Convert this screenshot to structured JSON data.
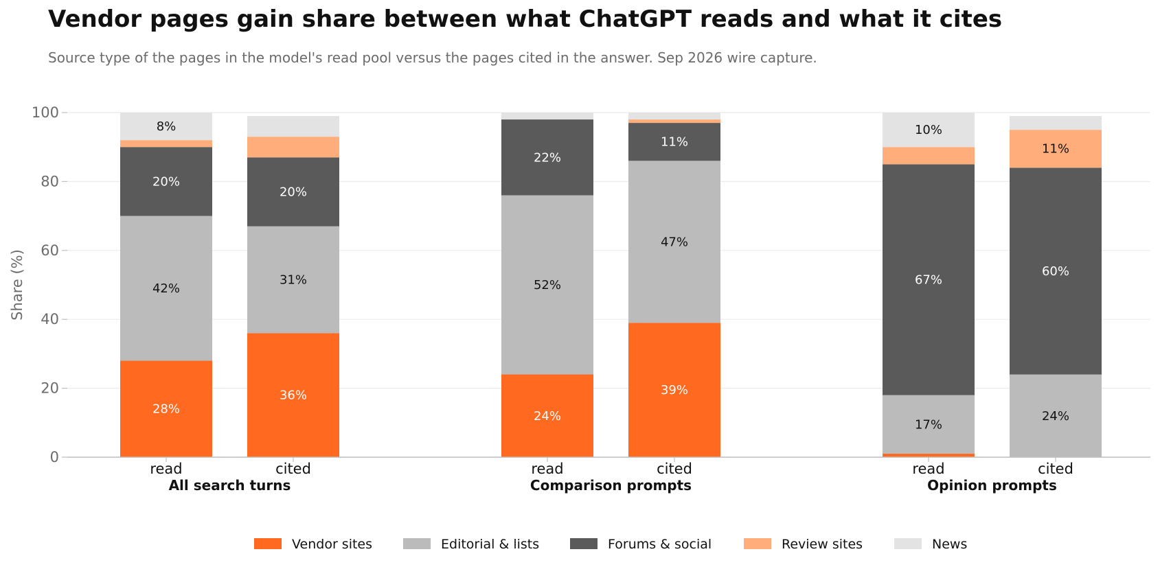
{
  "title": "Vendor pages gain share between what ChatGPT reads and what it cites",
  "subtitle": "Source type of the pages in the model's read pool versus the pages cited in the answer. Sep 2026 wire capture.",
  "chart_data": {
    "type": "bar",
    "stacked": true,
    "ylabel": "Share (%)",
    "ylim": [
      0,
      100
    ],
    "yticks": [
      0,
      20,
      40,
      60,
      80,
      100
    ],
    "grid": true,
    "legend_position": "bottom",
    "groups": [
      {
        "name": "All search turns",
        "bars": [
          {
            "label": "read",
            "values": [
              28,
              42,
              20,
              2,
              8
            ],
            "labels": [
              "28%",
              "42%",
              "20%",
              "",
              "8%"
            ]
          },
          {
            "label": "cited",
            "values": [
              36,
              31,
              20,
              6,
              6
            ],
            "labels": [
              "36%",
              "31%",
              "20%",
              "",
              ""
            ]
          }
        ]
      },
      {
        "name": "Comparison prompts",
        "bars": [
          {
            "label": "read",
            "values": [
              24,
              52,
              22,
              0,
              2
            ],
            "labels": [
              "24%",
              "52%",
              "22%",
              "",
              ""
            ]
          },
          {
            "label": "cited",
            "values": [
              39,
              47,
              11,
              1,
              2
            ],
            "labels": [
              "39%",
              "47%",
              "11%",
              "",
              ""
            ]
          }
        ]
      },
      {
        "name": "Opinion prompts",
        "bars": [
          {
            "label": "read",
            "values": [
              1,
              17,
              67,
              5,
              10
            ],
            "labels": [
              "",
              "17%",
              "67%",
              "",
              "10%"
            ]
          },
          {
            "label": "cited",
            "values": [
              0,
              24,
              60,
              11,
              4
            ],
            "labels": [
              "",
              "24%",
              "60%",
              "11%",
              ""
            ]
          }
        ]
      }
    ],
    "series": [
      {
        "name": "Vendor sites",
        "color": "#ff6a20",
        "label_color": "#ffffff"
      },
      {
        "name": "Editorial & lists",
        "color": "#bbbbbb",
        "label_color": "#111111"
      },
      {
        "name": "Forums & social",
        "color": "#5a5a5a",
        "label_color": "#ffffff"
      },
      {
        "name": "Review sites",
        "color": "#ffad7a",
        "label_color": "#111111"
      },
      {
        "name": "News",
        "color": "#e3e3e3",
        "label_color": "#111111"
      }
    ]
  }
}
